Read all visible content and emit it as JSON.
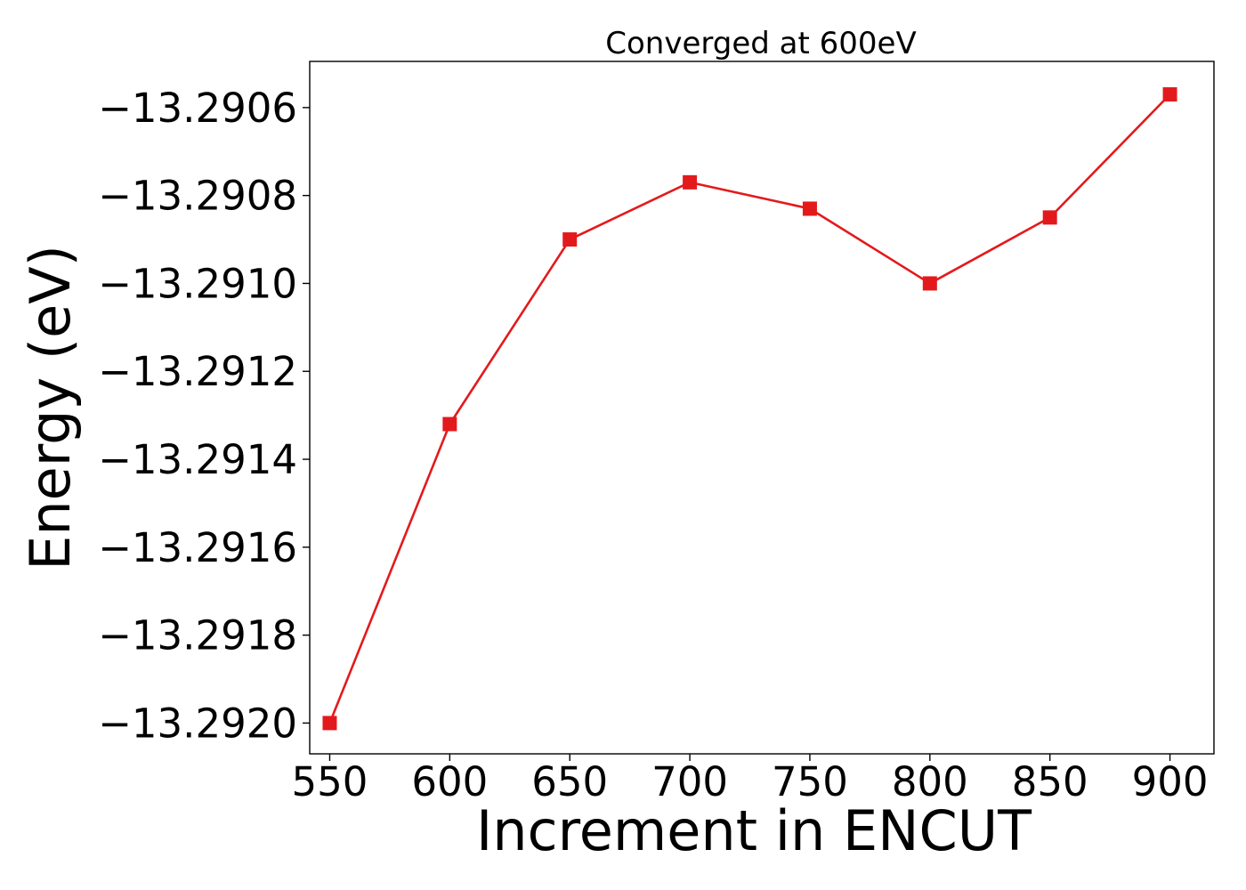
{
  "chart_data": {
    "type": "line",
    "title": "Converged at 600eV",
    "xlabel": "Increment in ENCUT",
    "ylabel": "Energy (eV)",
    "x": [
      550,
      600,
      650,
      700,
      750,
      800,
      850,
      900
    ],
    "series": [
      {
        "values": [
          -13.292,
          -13.29132,
          -13.2909,
          -13.29077,
          -13.29083,
          -13.291,
          -13.29085,
          -13.29057
        ],
        "color": "#e31a1c",
        "marker": "square"
      }
    ],
    "xticks": [
      550,
      600,
      650,
      700,
      750,
      800,
      850,
      900
    ],
    "xtick_labels": [
      "550",
      "600",
      "650",
      "700",
      "750",
      "800",
      "850",
      "900"
    ],
    "yticks": [
      -13.292,
      -13.2918,
      -13.2916,
      -13.2914,
      -13.2912,
      -13.291,
      -13.2908,
      -13.2906
    ],
    "ytick_labels": [
      "−13.2920",
      "−13.2918",
      "−13.2916",
      "−13.2914",
      "−13.2912",
      "−13.2910",
      "−13.2908",
      "−13.2906"
    ],
    "xlim": [
      541.67,
      918.33
    ],
    "ylim": [
      -13.29207,
      -13.290495
    ],
    "grid": false,
    "legend": "none"
  }
}
